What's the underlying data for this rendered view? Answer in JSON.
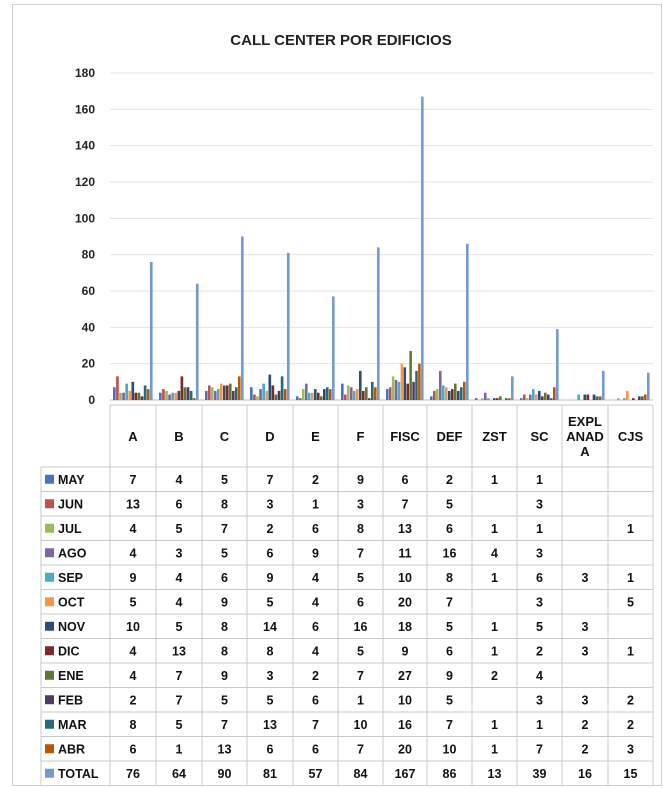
{
  "chart_data": {
    "type": "bar",
    "title": "CALL CENTER POR EDIFICIOS",
    "ylim": [
      0,
      180
    ],
    "y_ticks": [
      "0",
      "20",
      "40",
      "60",
      "80",
      "100",
      "120",
      "140",
      "160",
      "180"
    ],
    "grid": true,
    "legend": "data-table",
    "categories": [
      "A",
      "B",
      "C",
      "D",
      "E",
      "F",
      "FISC",
      "DEF",
      "ZST",
      "SC",
      "EXPL ANAD A",
      "CJS"
    ],
    "category_lines": [
      [
        "A"
      ],
      [
        "B"
      ],
      [
        "C"
      ],
      [
        "D"
      ],
      [
        "E"
      ],
      [
        "F"
      ],
      [
        "FISC"
      ],
      [
        "DEF"
      ],
      [
        "ZST"
      ],
      [
        "SC"
      ],
      [
        "EXPL",
        "ANAD",
        "A"
      ],
      [
        "CJS"
      ]
    ],
    "series": [
      {
        "name": "MAY",
        "color": "#4472C4",
        "values": [
          7,
          4,
          5,
          7,
          2,
          9,
          6,
          2,
          1,
          1,
          null,
          null
        ]
      },
      {
        "name": "JUN",
        "color": "#C0504D",
        "values": [
          13,
          6,
          8,
          3,
          1,
          3,
          7,
          5,
          null,
          3,
          null,
          null
        ]
      },
      {
        "name": "JUL",
        "color": "#9BBB59",
        "values": [
          4,
          5,
          7,
          2,
          6,
          8,
          13,
          6,
          1,
          1,
          null,
          1
        ]
      },
      {
        "name": "AGO",
        "color": "#8064A2",
        "values": [
          4,
          3,
          5,
          6,
          9,
          7,
          11,
          16,
          4,
          3,
          null,
          null
        ]
      },
      {
        "name": "SEP",
        "color": "#4BACC6",
        "values": [
          9,
          4,
          6,
          9,
          4,
          5,
          10,
          8,
          1,
          6,
          3,
          1
        ]
      },
      {
        "name": "OCT",
        "color": "#F79646",
        "values": [
          5,
          4,
          9,
          5,
          4,
          6,
          20,
          7,
          null,
          3,
          null,
          5
        ]
      },
      {
        "name": "NOV",
        "color": "#2C4D75",
        "values": [
          10,
          5,
          8,
          14,
          6,
          16,
          18,
          5,
          1,
          5,
          3,
          null
        ]
      },
      {
        "name": "DIC",
        "color": "#772C2A",
        "values": [
          4,
          13,
          8,
          8,
          4,
          5,
          9,
          6,
          1,
          2,
          3,
          1
        ]
      },
      {
        "name": "ENE",
        "color": "#5F7530",
        "values": [
          4,
          7,
          9,
          3,
          2,
          7,
          27,
          9,
          2,
          4,
          null,
          null
        ]
      },
      {
        "name": "FEB",
        "color": "#4D3B62",
        "values": [
          2,
          7,
          5,
          5,
          6,
          1,
          10,
          5,
          null,
          3,
          3,
          2
        ]
      },
      {
        "name": "MAR",
        "color": "#276A7C",
        "values": [
          8,
          5,
          7,
          13,
          7,
          10,
          16,
          7,
          1,
          1,
          2,
          2
        ]
      },
      {
        "name": "ABR",
        "color": "#B65708",
        "values": [
          6,
          1,
          13,
          6,
          6,
          7,
          20,
          10,
          1,
          7,
          2,
          3
        ]
      },
      {
        "name": "TOTAL",
        "color": "#729ACA",
        "values": [
          76,
          64,
          90,
          81,
          57,
          84,
          167,
          86,
          13,
          39,
          16,
          15
        ]
      }
    ]
  }
}
